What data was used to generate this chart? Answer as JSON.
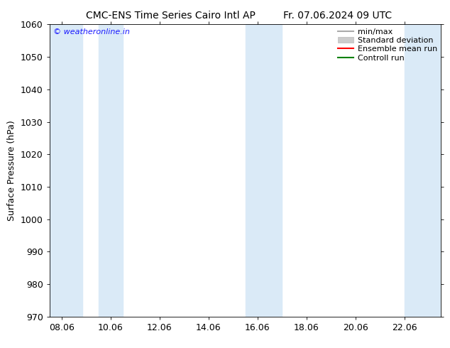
{
  "title_left": "CMC-ENS Time Series Cairo Intl AP",
  "title_right": "Fr. 07.06.2024 09 UTC",
  "ylabel": "Surface Pressure (hPa)",
  "ylim": [
    970,
    1060
  ],
  "yticks": [
    970,
    980,
    990,
    1000,
    1010,
    1020,
    1030,
    1040,
    1050,
    1060
  ],
  "xlim_start": 7.5,
  "xlim_end": 23.5,
  "xtick_positions": [
    8.0,
    10.0,
    12.0,
    14.0,
    16.0,
    18.0,
    20.0,
    22.0
  ],
  "xtick_labels": [
    "08.06",
    "10.06",
    "12.06",
    "14.06",
    "16.06",
    "18.06",
    "20.06",
    "22.06"
  ],
  "shaded_bands": [
    {
      "x_start": 7.5,
      "x_end": 8.83
    },
    {
      "x_start": 9.5,
      "x_end": 10.5
    },
    {
      "x_start": 15.5,
      "x_end": 17.0
    },
    {
      "x_start": 22.0,
      "x_end": 23.5
    }
  ],
  "band_color": "#daeaf7",
  "watermark": "© weatheronline.in",
  "watermark_color": "#1a1aff",
  "legend_entries": [
    {
      "label": "min/max",
      "color": "#aaaaaa",
      "type": "line"
    },
    {
      "label": "Standard deviation",
      "color": "#cccccc",
      "type": "fill"
    },
    {
      "label": "Ensemble mean run",
      "color": "#ff0000",
      "type": "line"
    },
    {
      "label": "Controll run",
      "color": "#008000",
      "type": "line"
    }
  ],
  "bg_color": "#ffffff",
  "title_fontsize": 10,
  "axis_fontsize": 9,
  "tick_fontsize": 9,
  "legend_fontsize": 8
}
